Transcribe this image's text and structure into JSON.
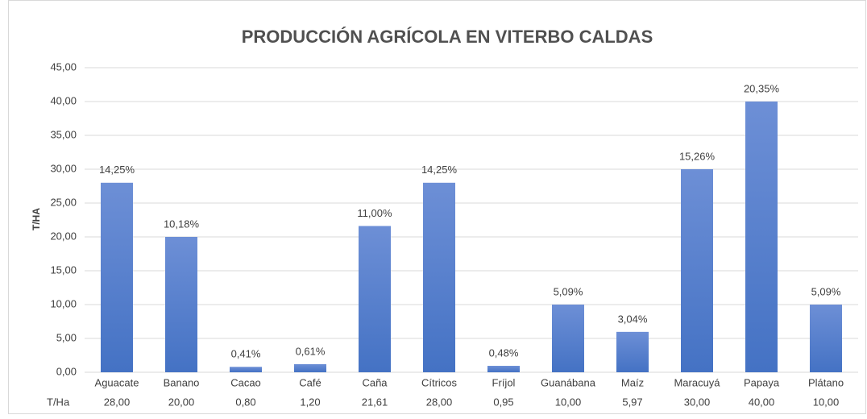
{
  "chart_data": {
    "type": "bar",
    "title": "PRODUCCIÓN AGRÍCOLA EN VITERBO CALDAS",
    "y_label": "T/HA",
    "categories": [
      "Aguacate",
      "Banano",
      "Cacao",
      "Café",
      "Caña",
      "Cítricos",
      "Fríjol",
      "Guanábana",
      "Maíz",
      "Maracuyá",
      "Papaya",
      "Plátano"
    ],
    "values": [
      28,
      20,
      0.8,
      1.2,
      21.61,
      28,
      0.95,
      10,
      5.97,
      30,
      40,
      10
    ],
    "percent_labels": [
      "14,25%",
      "10,18%",
      "0,41%",
      "0,61%",
      "11,00%",
      "14,25%",
      "0,48%",
      "5,09%",
      "3,04%",
      "15,26%",
      "20,35%",
      "5,09%"
    ],
    "table_row": {
      "label": "T/Ha",
      "values": [
        "28,00",
        "20,00",
        "0,80",
        "1,20",
        "21,61",
        "28,00",
        "0,95",
        "10,00",
        "5,97",
        "30,00",
        "40,00",
        "10,00"
      ]
    },
    "color": "#4472c4",
    "ylim": [
      0,
      45
    ],
    "yticks": [
      {
        "value": 0,
        "label": "0,00"
      },
      {
        "value": 5,
        "label": "5,00"
      },
      {
        "value": 10,
        "label": "10,00"
      },
      {
        "value": 15,
        "label": "15,00"
      },
      {
        "value": 20,
        "label": "20,00"
      },
      {
        "value": 25,
        "label": "25,00"
      },
      {
        "value": 30,
        "label": "30,00"
      },
      {
        "value": 35,
        "label": "35,00"
      },
      {
        "value": 40,
        "label": "40,00"
      },
      {
        "value": 45,
        "label": "45,00"
      }
    ],
    "grid": true
  }
}
